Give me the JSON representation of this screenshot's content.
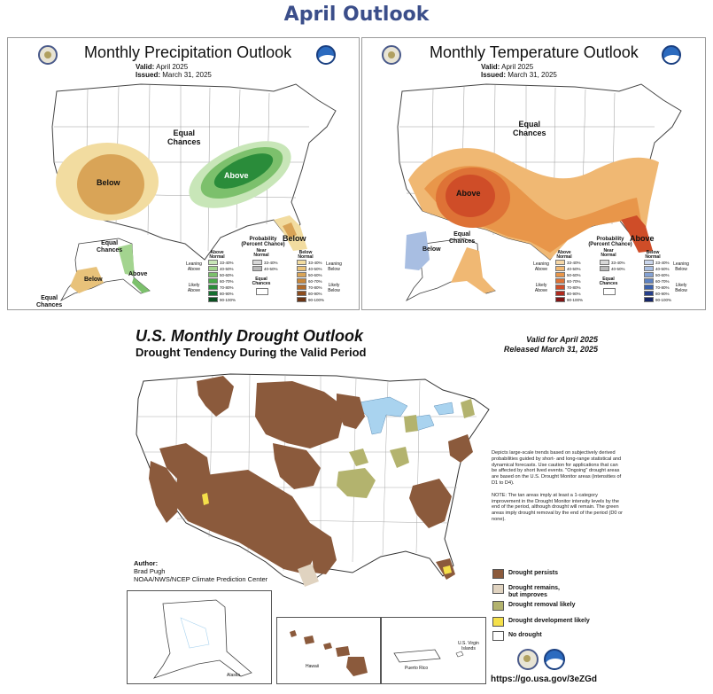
{
  "page_title": "April Outlook",
  "precip": {
    "title": "Monthly Precipitation Outlook",
    "valid_label": "Valid:",
    "valid_value": "April 2025",
    "issued_label": "Issued:",
    "issued_value": "March 31, 2025",
    "labels": {
      "equal_chances": "Equal\nChances",
      "below_west": "Below",
      "above_east": "Above",
      "below_fl": "Below",
      "ak_equal": "Equal\nChances",
      "ak_below": "Below",
      "ak_above": "Above",
      "ak_equal2": "Equal\nChances"
    },
    "legend": {
      "title": "Probability\n(Percent Chance)",
      "col_above": "Above\nNormal",
      "col_near": "Near\nNormal",
      "col_below": "Below\nNormal",
      "leaning_above": "Leaning\nAbove",
      "likely_above": "Likely\nAbove",
      "leaning_below": "Leaning\nBelow",
      "likely_below": "Likely\nBelow",
      "equal": "Equal\nChances",
      "bins": [
        "33-40%",
        "40-50%",
        "50-60%",
        "60-70%",
        "70-80%",
        "80-90%",
        "90-100%"
      ],
      "near_bins": [
        "33-40%",
        "40-50%"
      ],
      "above_colors": [
        "#c8e6b8",
        "#a3d48f",
        "#7cc06c",
        "#4aa84a",
        "#2a8c3a",
        "#157030",
        "#0a5020"
      ],
      "below_colors": [
        "#f2dca0",
        "#e8c27a",
        "#d9a457",
        "#c8863a",
        "#b06a2a",
        "#8c4c1e",
        "#6a3414"
      ],
      "near_colors": [
        "#d8d8d8",
        "#b8b8b8"
      ]
    }
  },
  "temp": {
    "title": "Monthly Temperature Outlook",
    "valid_label": "Valid:",
    "valid_value": "April 2025",
    "issued_label": "Issued:",
    "issued_value": "March 31, 2025",
    "labels": {
      "equal_chances": "Equal\nChances",
      "above_sw": "Above",
      "above_fl": "Above",
      "ak_equal": "Equal\nChances",
      "ak_below": "Below"
    },
    "legend": {
      "title": "Probability\n(Percent Chance)",
      "col_above": "Above\nNormal",
      "col_near": "Near\nNormal",
      "col_below": "Below\nNormal",
      "leaning_above": "Leaning\nAbove",
      "likely_above": "Likely\nAbove",
      "leaning_below": "Leaning\nBelow",
      "likely_below": "Likely\nBelow",
      "equal": "Equal\nChances",
      "bins": [
        "33-40%",
        "40-50%",
        "50-60%",
        "60-70%",
        "70-80%",
        "80-90%",
        "90-100%"
      ],
      "near_bins": [
        "33-40%",
        "40-50%"
      ],
      "above_colors": [
        "#f6d7a6",
        "#f0b873",
        "#e8964a",
        "#de7236",
        "#cf4d28",
        "#b02a1e",
        "#801414"
      ],
      "below_colors": [
        "#cad6ec",
        "#a8bee2",
        "#84a2d4",
        "#5d82c2",
        "#3a60ac",
        "#253f8c",
        "#142466"
      ],
      "near_colors": [
        "#d8d8d8",
        "#b8b8b8"
      ]
    }
  },
  "drought": {
    "title": "U.S. Monthly Drought Outlook",
    "subtitle": "Drought Tendency During the Valid Period",
    "valid_line": "Valid for April 2025",
    "released_line": "Released March 31, 2025",
    "notes_1": "Depicts large-scale trends based on subjectively derived probabilities guided by short- and long-range statistical and dynamical forecasts. Use caution for applications that can be affected by short lived events. \"Ongoing\" drought areas are based on the U.S. Drought Monitor areas (intensities of D1 to D4).",
    "notes_2": "NOTE: The tan areas imply at least a 1-category improvement in the Drought Monitor intensity levels by the end of the period, although drought will remain. The green areas imply drought removal by the end of the period (D0 or none).",
    "legend": [
      {
        "label": "Drought persists",
        "color": "#8b5a3c"
      },
      {
        "label": "Drought remains,\nbut improves",
        "color": "#e0d3c0"
      },
      {
        "label": "Drought removal likely",
        "color": "#b3b36e"
      },
      {
        "label": "Drought development likely",
        "color": "#f5e04a"
      },
      {
        "label": "No drought",
        "color": "#ffffff"
      }
    ],
    "author_label": "Author:",
    "author_name": "Brad Pugh",
    "author_org": "NOAA/NWS/NCEP Climate Prediction Center",
    "url": "https://go.usa.gov/3eZGd",
    "insets": {
      "alaska": "Alaska",
      "hawaii": "Hawaii",
      "puerto_rico": "Puerto Rico",
      "usvi": "U.S. Virgin\nIslands"
    }
  },
  "colors": {
    "title_blue": "#3b4e8a",
    "drought_brown": "#8b5a3c",
    "water_blue": "#a9d3ef"
  }
}
